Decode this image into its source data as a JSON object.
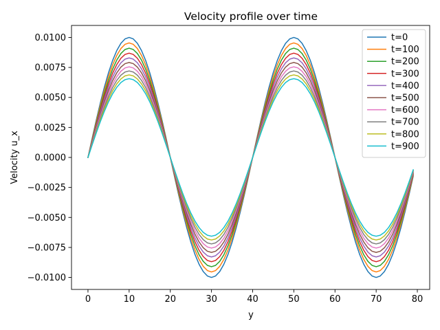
{
  "chart_data": {
    "type": "line",
    "title": "Velocity profile over time",
    "xlabel": "y",
    "ylabel": "Velocity u_x",
    "xlim": [
      -4,
      83
    ],
    "ylim": [
      -0.011,
      0.011
    ],
    "x_ticks": [
      0,
      10,
      20,
      30,
      40,
      50,
      60,
      70,
      80
    ],
    "x_tick_labels": [
      "0",
      "10",
      "20",
      "30",
      "40",
      "50",
      "60",
      "70",
      "80"
    ],
    "y_ticks": [
      -0.01,
      -0.0075,
      -0.005,
      -0.0025,
      0,
      0.0025,
      0.005,
      0.0075,
      0.01
    ],
    "y_tick_labels": [
      "−0.0100",
      "−0.0075",
      "−0.0050",
      "−0.0025",
      "0.0000",
      "0.0025",
      "0.0050",
      "0.0075",
      "0.0100"
    ],
    "grid": false,
    "legend_position": "top-right",
    "x": [
      0,
      1,
      2,
      3,
      4,
      5,
      6,
      7,
      8,
      9,
      10,
      11,
      12,
      13,
      14,
      15,
      16,
      17,
      18,
      19,
      20,
      21,
      22,
      23,
      24,
      25,
      26,
      27,
      28,
      29,
      30,
      31,
      32,
      33,
      34,
      35,
      36,
      37,
      38,
      39,
      40,
      41,
      42,
      43,
      44,
      45,
      46,
      47,
      48,
      49,
      50,
      51,
      52,
      53,
      54,
      55,
      56,
      57,
      58,
      59,
      60,
      61,
      62,
      63,
      64,
      65,
      66,
      67,
      68,
      69,
      70,
      71,
      72,
      73,
      74,
      75,
      76,
      77,
      78,
      79
    ],
    "series": [
      {
        "name": "t=0",
        "color": "#1f77b4",
        "values": [
          0.0,
          0.001564,
          0.00309,
          0.00454,
          0.005878,
          0.007071,
          0.00809,
          0.00891,
          0.009511,
          0.009877,
          0.01,
          0.009877,
          0.009511,
          0.00891,
          0.00809,
          0.007071,
          0.005878,
          0.00454,
          0.00309,
          0.001564,
          0.0,
          -0.001564,
          -0.00309,
          -0.00454,
          -0.005878,
          -0.007071,
          -0.00809,
          -0.00891,
          -0.009511,
          -0.009877,
          -0.01,
          -0.009877,
          -0.009511,
          -0.00891,
          -0.00809,
          -0.007071,
          -0.005878,
          -0.00454,
          -0.00309,
          -0.001564,
          0.0,
          0.001564,
          0.00309,
          0.00454,
          0.005878,
          0.007071,
          0.00809,
          0.00891,
          0.009511,
          0.009877,
          0.01,
          0.009877,
          0.009511,
          0.00891,
          0.00809,
          0.007071,
          0.005878,
          0.00454,
          0.00309,
          0.001564,
          0.0,
          -0.001564,
          -0.00309,
          -0.00454,
          -0.005878,
          -0.007071,
          -0.00809,
          -0.00891,
          -0.009511,
          -0.009877,
          -0.01,
          -0.009877,
          -0.009511,
          -0.00891,
          -0.00809,
          -0.007071,
          -0.005878,
          -0.00454,
          -0.00309,
          -0.001564
        ]
      },
      {
        "name": "t=100",
        "color": "#ff7f0e",
        "values": [
          0.0,
          0.001492,
          0.002949,
          0.004332,
          0.005609,
          0.006748,
          0.00772,
          0.008503,
          0.009076,
          0.009426,
          0.009543,
          0.009426,
          0.009076,
          0.008503,
          0.00772,
          0.006748,
          0.005609,
          0.004332,
          0.002949,
          0.001492,
          0.0,
          -0.001492,
          -0.002949,
          -0.004332,
          -0.005609,
          -0.006748,
          -0.00772,
          -0.008503,
          -0.009076,
          -0.009426,
          -0.009543,
          -0.009426,
          -0.009076,
          -0.008503,
          -0.00772,
          -0.006748,
          -0.005609,
          -0.004332,
          -0.002949,
          -0.001492,
          0.0,
          0.001492,
          0.002949,
          0.004332,
          0.005609,
          0.006748,
          0.00772,
          0.008503,
          0.009076,
          0.009426,
          0.009543,
          0.009426,
          0.009076,
          0.008503,
          0.00772,
          0.006748,
          0.005609,
          0.004332,
          0.002949,
          0.001492,
          0.0,
          -0.001492,
          -0.002949,
          -0.004332,
          -0.005609,
          -0.006748,
          -0.00772,
          -0.008503,
          -0.009076,
          -0.009426,
          -0.009543,
          -0.009426,
          -0.009076,
          -0.008503,
          -0.00772,
          -0.006748,
          -0.005609,
          -0.004332,
          -0.002949,
          -0.001492
        ]
      },
      {
        "name": "t=200",
        "color": "#2ca02c",
        "values": [
          0.0,
          0.001424,
          0.002814,
          0.004134,
          0.005353,
          0.006439,
          0.007367,
          0.008114,
          0.008661,
          0.008995,
          0.009107,
          0.008995,
          0.008661,
          0.008114,
          0.007367,
          0.006439,
          0.005353,
          0.004134,
          0.002814,
          0.001424,
          0.0,
          -0.001424,
          -0.002814,
          -0.004134,
          -0.005353,
          -0.006439,
          -0.007367,
          -0.008114,
          -0.008661,
          -0.008995,
          -0.009107,
          -0.008995,
          -0.008661,
          -0.008114,
          -0.007367,
          -0.006439,
          -0.005353,
          -0.004134,
          -0.002814,
          -0.001424,
          0.0,
          0.001424,
          0.002814,
          0.004134,
          0.005353,
          0.006439,
          0.007367,
          0.008114,
          0.008661,
          0.008995,
          0.009107,
          0.008995,
          0.008661,
          0.008114,
          0.007367,
          0.006439,
          0.005353,
          0.004134,
          0.002814,
          0.001424,
          0.0,
          -0.001424,
          -0.002814,
          -0.004134,
          -0.005353,
          -0.006439,
          -0.007367,
          -0.008114,
          -0.008661,
          -0.008995,
          -0.009107,
          -0.008995,
          -0.008661,
          -0.008114,
          -0.007367,
          -0.006439,
          -0.005353,
          -0.004134,
          -0.002814,
          -0.001424
        ]
      },
      {
        "name": "t=300",
        "color": "#d62728",
        "values": [
          0.0,
          0.001359,
          0.002686,
          0.003946,
          0.005109,
          0.006145,
          0.007031,
          0.007743,
          0.008265,
          0.008584,
          0.008691,
          0.008584,
          0.008265,
          0.007743,
          0.007031,
          0.006145,
          0.005109,
          0.003946,
          0.002686,
          0.001359,
          0.0,
          -0.001359,
          -0.002686,
          -0.003946,
          -0.005109,
          -0.006145,
          -0.007031,
          -0.007743,
          -0.008265,
          -0.008584,
          -0.008691,
          -0.008584,
          -0.008265,
          -0.007743,
          -0.007031,
          -0.006145,
          -0.005109,
          -0.003946,
          -0.002686,
          -0.001359,
          0.0,
          0.001359,
          0.002686,
          0.003946,
          0.005109,
          0.006145,
          0.007031,
          0.007743,
          0.008265,
          0.008584,
          0.008691,
          0.008584,
          0.008265,
          0.007743,
          0.007031,
          0.006145,
          0.005109,
          0.003946,
          0.002686,
          0.001359,
          0.0,
          -0.001359,
          -0.002686,
          -0.003946,
          -0.005109,
          -0.006145,
          -0.007031,
          -0.007743,
          -0.008265,
          -0.008584,
          -0.008691,
          -0.008584,
          -0.008265,
          -0.007743,
          -0.007031,
          -0.006145,
          -0.005109,
          -0.003946,
          -0.002686,
          -0.001359
        ]
      },
      {
        "name": "t=400",
        "color": "#9467bd",
        "values": [
          0.0,
          0.001297,
          0.002563,
          0.003765,
          0.004875,
          0.005864,
          0.00671,
          0.007389,
          0.007888,
          0.008192,
          0.008294,
          0.008192,
          0.007888,
          0.007389,
          0.00671,
          0.005864,
          0.004875,
          0.003765,
          0.002563,
          0.001297,
          0.0,
          -0.001297,
          -0.002563,
          -0.003765,
          -0.004875,
          -0.005864,
          -0.00671,
          -0.007389,
          -0.007888,
          -0.008192,
          -0.008294,
          -0.008192,
          -0.007888,
          -0.007389,
          -0.00671,
          -0.005864,
          -0.004875,
          -0.003765,
          -0.002563,
          -0.001297,
          0.0,
          0.001297,
          0.002563,
          0.003765,
          0.004875,
          0.005864,
          0.00671,
          0.007389,
          0.007888,
          0.008192,
          0.008294,
          0.008192,
          0.007888,
          0.007389,
          0.00671,
          0.005864,
          0.004875,
          0.003765,
          0.002563,
          0.001297,
          0.0,
          -0.001297,
          -0.002563,
          -0.003765,
          -0.004875,
          -0.005864,
          -0.00671,
          -0.007389,
          -0.007888,
          -0.008192,
          -0.008294,
          -0.008192,
          -0.007888,
          -0.007389,
          -0.00671,
          -0.005864,
          -0.004875,
          -0.003765,
          -0.002563,
          -0.001297
        ]
      },
      {
        "name": "t=500",
        "color": "#8c564b",
        "values": [
          0.0,
          0.001238,
          0.002446,
          0.003593,
          0.004652,
          0.005597,
          0.006403,
          0.007052,
          0.007527,
          0.007818,
          0.007915,
          0.007818,
          0.007527,
          0.007052,
          0.006403,
          0.005597,
          0.004652,
          0.003593,
          0.002446,
          0.001238,
          0.0,
          -0.001238,
          -0.002446,
          -0.003593,
          -0.004652,
          -0.005597,
          -0.006403,
          -0.007052,
          -0.007527,
          -0.007818,
          -0.007915,
          -0.007818,
          -0.007527,
          -0.007052,
          -0.006403,
          -0.005597,
          -0.004652,
          -0.003593,
          -0.002446,
          -0.001238,
          0.0,
          0.001238,
          0.002446,
          0.003593,
          0.004652,
          0.005597,
          0.006403,
          0.007052,
          0.007527,
          0.007818,
          0.007915,
          0.007818,
          0.007527,
          0.007052,
          0.006403,
          0.005597,
          0.004652,
          0.003593,
          0.002446,
          0.001238,
          0.0,
          -0.001238,
          -0.002446,
          -0.003593,
          -0.004652,
          -0.005597,
          -0.006403,
          -0.007052,
          -0.007527,
          -0.007818,
          -0.007915,
          -0.007818,
          -0.007527,
          -0.007052,
          -0.006403,
          -0.005597,
          -0.004652,
          -0.003593,
          -0.002446,
          -0.001238
        ]
      },
      {
        "name": "t=600",
        "color": "#e377c2",
        "values": [
          0.0,
          0.001181,
          0.002334,
          0.003429,
          0.00444,
          0.005341,
          0.00611,
          0.006729,
          0.007183,
          0.00746,
          0.007553,
          0.00746,
          0.007183,
          0.006729,
          0.00611,
          0.005341,
          0.00444,
          0.003429,
          0.002334,
          0.001181,
          0.0,
          -0.001181,
          -0.002334,
          -0.003429,
          -0.00444,
          -0.005341,
          -0.00611,
          -0.006729,
          -0.007183,
          -0.00746,
          -0.007553,
          -0.00746,
          -0.007183,
          -0.006729,
          -0.00611,
          -0.005341,
          -0.00444,
          -0.003429,
          -0.002334,
          -0.001181,
          0.0,
          0.001181,
          0.002334,
          0.003429,
          0.00444,
          0.005341,
          0.00611,
          0.006729,
          0.007183,
          0.00746,
          0.007553,
          0.00746,
          0.007183,
          0.006729,
          0.00611,
          0.005341,
          0.00444,
          0.003429,
          0.002334,
          0.001181,
          0.0,
          -0.001181,
          -0.002334,
          -0.003429,
          -0.00444,
          -0.005341,
          -0.00611,
          -0.006729,
          -0.007183,
          -0.00746,
          -0.007553,
          -0.00746,
          -0.007183,
          -0.006729,
          -0.00611,
          -0.005341,
          -0.00444,
          -0.003429,
          -0.002334,
          -0.001181
        ]
      },
      {
        "name": "t=700",
        "color": "#7f7f7f",
        "values": [
          0.0,
          0.001127,
          0.002227,
          0.003272,
          0.004237,
          0.005096,
          0.005831,
          0.006421,
          0.006855,
          0.007119,
          0.007208,
          0.007119,
          0.006855,
          0.006421,
          0.005831,
          0.005096,
          0.004237,
          0.003272,
          0.002227,
          0.001127,
          0.0,
          -0.001127,
          -0.002227,
          -0.003272,
          -0.004237,
          -0.005096,
          -0.005831,
          -0.006421,
          -0.006855,
          -0.007119,
          -0.007208,
          -0.007119,
          -0.006855,
          -0.006421,
          -0.005831,
          -0.005096,
          -0.004237,
          -0.003272,
          -0.002227,
          -0.001127,
          0.0,
          0.001127,
          0.002227,
          0.003272,
          0.004237,
          0.005096,
          0.005831,
          0.006421,
          0.006855,
          0.007119,
          0.007208,
          0.007119,
          0.006855,
          0.006421,
          0.005831,
          0.005096,
          0.004237,
          0.003272,
          0.002227,
          0.001127,
          0.0,
          -0.001127,
          -0.002227,
          -0.003272,
          -0.004237,
          -0.005096,
          -0.005831,
          -0.006421,
          -0.006855,
          -0.007119,
          -0.007208,
          -0.007119,
          -0.006855,
          -0.006421,
          -0.005831,
          -0.005096,
          -0.004237,
          -0.003272,
          -0.002227,
          -0.001127
        ]
      },
      {
        "name": "t=800",
        "color": "#bcbd22",
        "values": [
          0.0,
          0.001076,
          0.002126,
          0.003123,
          0.004043,
          0.004864,
          0.005564,
          0.006128,
          0.006542,
          0.006794,
          0.006878,
          0.006794,
          0.006542,
          0.006128,
          0.005564,
          0.004864,
          0.004043,
          0.003123,
          0.002126,
          0.001076,
          0.0,
          -0.001076,
          -0.002126,
          -0.003123,
          -0.004043,
          -0.004864,
          -0.005564,
          -0.006128,
          -0.006542,
          -0.006794,
          -0.006878,
          -0.006794,
          -0.006542,
          -0.006128,
          -0.005564,
          -0.004864,
          -0.004043,
          -0.003123,
          -0.002126,
          -0.001076,
          0.0,
          0.001076,
          0.002126,
          0.003123,
          0.004043,
          0.004864,
          0.005564,
          0.006128,
          0.006542,
          0.006794,
          0.006878,
          0.006794,
          0.006542,
          0.006128,
          0.005564,
          0.004864,
          0.004043,
          0.003123,
          0.002126,
          0.001076,
          0.0,
          -0.001076,
          -0.002126,
          -0.003123,
          -0.004043,
          -0.004864,
          -0.005564,
          -0.006128,
          -0.006542,
          -0.006794,
          -0.006878,
          -0.006794,
          -0.006542,
          -0.006128,
          -0.005564,
          -0.004864,
          -0.004043,
          -0.003123,
          -0.002126,
          -0.001076
        ]
      },
      {
        "name": "t=900",
        "color": "#17becf",
        "values": [
          0.0,
          0.001027,
          0.002029,
          0.00298,
          0.003859,
          0.004641,
          0.00531,
          0.005848,
          0.006243,
          0.006483,
          0.006564,
          0.006483,
          0.006243,
          0.005848,
          0.00531,
          0.004641,
          0.003859,
          0.00298,
          0.002029,
          0.001027,
          0.0,
          -0.001027,
          -0.002029,
          -0.00298,
          -0.003859,
          -0.004641,
          -0.00531,
          -0.005848,
          -0.006243,
          -0.006483,
          -0.006564,
          -0.006483,
          -0.006243,
          -0.005848,
          -0.00531,
          -0.004641,
          -0.003859,
          -0.00298,
          -0.002029,
          -0.001027,
          0.0,
          0.001027,
          0.002029,
          0.00298,
          0.003859,
          0.004641,
          0.00531,
          0.005848,
          0.006243,
          0.006483,
          0.006564,
          0.006483,
          0.006243,
          0.005848,
          0.00531,
          0.004641,
          0.003859,
          0.00298,
          0.002029,
          0.001027,
          0.0,
          -0.001027,
          -0.002029,
          -0.00298,
          -0.003859,
          -0.004641,
          -0.00531,
          -0.005848,
          -0.006243,
          -0.006483,
          -0.006564,
          -0.006483,
          -0.006243,
          -0.005848,
          -0.00531,
          -0.004641,
          -0.003859,
          -0.00298,
          -0.002029,
          -0.001027
        ]
      }
    ]
  }
}
